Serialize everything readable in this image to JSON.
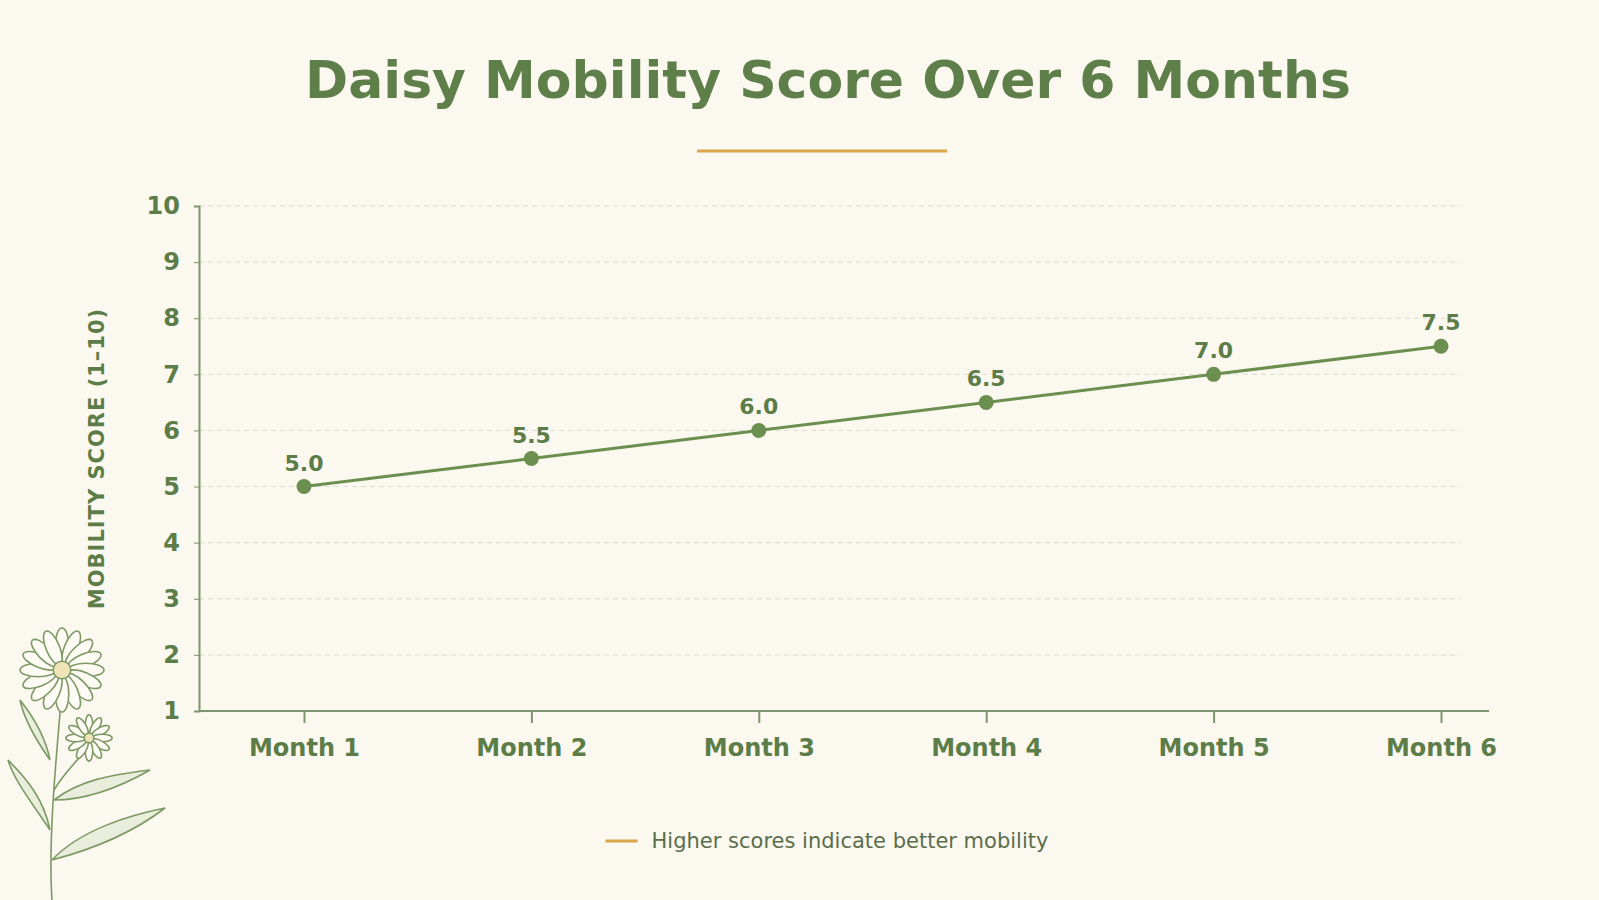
{
  "chart_data": {
    "type": "line",
    "title": "Daisy Mobility Score Over 6 Months",
    "y_label": "MOBILITY SCORE (1–10)",
    "annotation": "Higher scores indicate better mobility",
    "categories": [
      "Month 1",
      "Month 2",
      "Month 3",
      "Month 4",
      "Month 5",
      "Month 6"
    ],
    "values": [
      5,
      5.5,
      6,
      6.5,
      7,
      7.5
    ],
    "value_labels": [
      "5.0",
      "5.5",
      "6.0",
      "6.5",
      "7.0",
      "7.5"
    ],
    "color": "#6b8f4e",
    "ylim": [
      1,
      10
    ],
    "yticks": [
      1,
      2,
      3,
      4,
      5,
      6,
      7,
      8,
      9,
      10
    ],
    "grid": true,
    "data_labels": true,
    "marker": "circle",
    "line_style": "solid"
  }
}
